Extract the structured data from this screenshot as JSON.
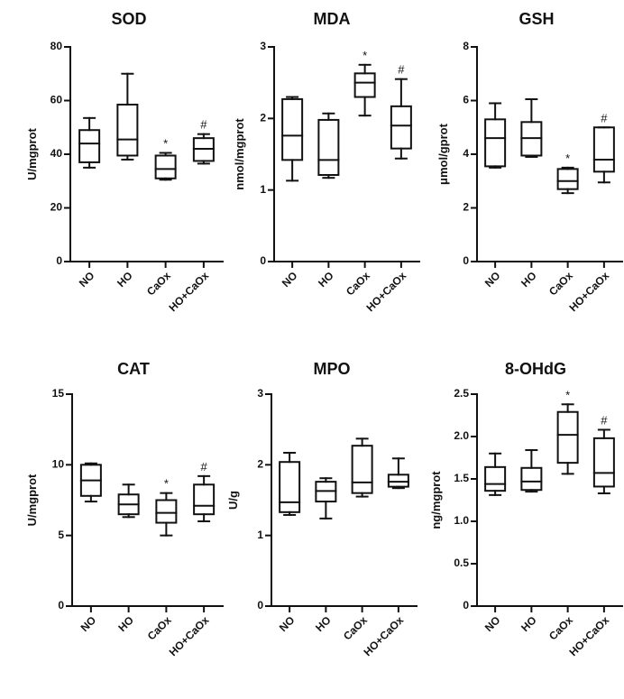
{
  "figure_colors": {
    "line": "#111111",
    "background": "#ffffff"
  },
  "chart_data": [
    {
      "type": "box",
      "title": "SOD",
      "ylabel": "U/mgprot",
      "ylim": [
        0,
        80
      ],
      "yticks": [
        0,
        20,
        40,
        60,
        80
      ],
      "categories": [
        "NO",
        "HO",
        "CaOx",
        "HO+CaOx"
      ],
      "boxes": [
        {
          "min": 35,
          "q1": 37,
          "median": 44,
          "q3": 49,
          "max": 53.5,
          "annotation": ""
        },
        {
          "min": 38,
          "q1": 39.5,
          "median": 45.5,
          "q3": 58.5,
          "max": 70,
          "annotation": ""
        },
        {
          "min": 30.5,
          "q1": 31,
          "median": 34.5,
          "q3": 39.5,
          "max": 40.5,
          "annotation": "*"
        },
        {
          "min": 36.5,
          "q1": 37.5,
          "median": 42,
          "q3": 46,
          "max": 47.5,
          "annotation": "#"
        }
      ]
    },
    {
      "type": "box",
      "title": "MDA",
      "ylabel": "nmol/mgprot",
      "ylim": [
        0,
        3
      ],
      "yticks": [
        0,
        1,
        2,
        3
      ],
      "categories": [
        "NO",
        "HO",
        "CaOx",
        "HO+CaOx"
      ],
      "boxes": [
        {
          "min": 1.13,
          "q1": 1.42,
          "median": 1.76,
          "q3": 2.27,
          "max": 2.3,
          "annotation": ""
        },
        {
          "min": 1.17,
          "q1": 1.21,
          "median": 1.42,
          "q3": 1.98,
          "max": 2.07,
          "annotation": ""
        },
        {
          "min": 2.04,
          "q1": 2.3,
          "median": 2.5,
          "q3": 2.63,
          "max": 2.75,
          "annotation": "*"
        },
        {
          "min": 1.44,
          "q1": 1.58,
          "median": 1.9,
          "q3": 2.17,
          "max": 2.55,
          "annotation": "#"
        }
      ]
    },
    {
      "type": "box",
      "title": "GSH",
      "ylabel": "μmol/gprot",
      "ylim": [
        0,
        8
      ],
      "yticks": [
        0,
        2,
        4,
        6,
        8
      ],
      "categories": [
        "NO",
        "HO",
        "CaOx",
        "HO+CaOx"
      ],
      "boxes": [
        {
          "min": 3.5,
          "q1": 3.55,
          "median": 4.6,
          "q3": 5.3,
          "max": 5.9,
          "annotation": ""
        },
        {
          "min": 3.9,
          "q1": 3.95,
          "median": 4.6,
          "q3": 5.2,
          "max": 6.05,
          "annotation": ""
        },
        {
          "min": 2.55,
          "q1": 2.7,
          "median": 3.0,
          "q3": 3.45,
          "max": 3.5,
          "annotation": "*"
        },
        {
          "min": 2.95,
          "q1": 3.35,
          "median": 3.8,
          "q3": 5.0,
          "max": 5.0,
          "annotation": "#"
        }
      ]
    },
    {
      "type": "box",
      "title": "CAT",
      "ylabel": "U/mgprot",
      "ylim": [
        0,
        15
      ],
      "yticks": [
        0,
        5,
        10,
        15
      ],
      "categories": [
        "NO",
        "HO",
        "CaOx",
        "HO+CaOx"
      ],
      "boxes": [
        {
          "min": 7.4,
          "q1": 7.8,
          "median": 8.9,
          "q3": 10.0,
          "max": 10.1,
          "annotation": ""
        },
        {
          "min": 6.3,
          "q1": 6.5,
          "median": 7.2,
          "q3": 7.9,
          "max": 8.6,
          "annotation": ""
        },
        {
          "min": 5.0,
          "q1": 5.9,
          "median": 6.6,
          "q3": 7.5,
          "max": 8.0,
          "annotation": "*"
        },
        {
          "min": 6.0,
          "q1": 6.5,
          "median": 7.1,
          "q3": 8.6,
          "max": 9.2,
          "annotation": "#"
        }
      ]
    },
    {
      "type": "box",
      "title": "MPO",
      "ylabel": "U/g",
      "ylim": [
        0,
        3
      ],
      "yticks": [
        0,
        1,
        2,
        3
      ],
      "categories": [
        "NO",
        "HO",
        "CaOx",
        "HO+CaOx"
      ],
      "boxes": [
        {
          "min": 1.29,
          "q1": 1.33,
          "median": 1.47,
          "q3": 2.04,
          "max": 2.17,
          "annotation": ""
        },
        {
          "min": 1.24,
          "q1": 1.48,
          "median": 1.63,
          "q3": 1.76,
          "max": 1.81,
          "annotation": ""
        },
        {
          "min": 1.55,
          "q1": 1.6,
          "median": 1.75,
          "q3": 2.27,
          "max": 2.37,
          "annotation": ""
        },
        {
          "min": 1.67,
          "q1": 1.69,
          "median": 1.76,
          "q3": 1.86,
          "max": 2.09,
          "annotation": ""
        }
      ]
    },
    {
      "type": "box",
      "title": "8-OHdG",
      "ylabel": "ng/mgprot",
      "ylim": [
        0,
        2.5
      ],
      "yticks": [
        "0",
        "0.5",
        "1.0",
        "1.5",
        "2.0",
        "2.5"
      ],
      "categories": [
        "NO",
        "HO",
        "CaOx",
        "HO+CaOx"
      ],
      "boxes": [
        {
          "min": 1.31,
          "q1": 1.36,
          "median": 1.44,
          "q3": 1.64,
          "max": 1.8,
          "annotation": ""
        },
        {
          "min": 1.35,
          "q1": 1.37,
          "median": 1.47,
          "q3": 1.63,
          "max": 1.84,
          "annotation": ""
        },
        {
          "min": 1.56,
          "q1": 1.69,
          "median": 2.02,
          "q3": 2.29,
          "max": 2.38,
          "annotation": "*"
        },
        {
          "min": 1.33,
          "q1": 1.41,
          "median": 1.57,
          "q3": 1.98,
          "max": 2.08,
          "annotation": "#"
        }
      ]
    }
  ]
}
